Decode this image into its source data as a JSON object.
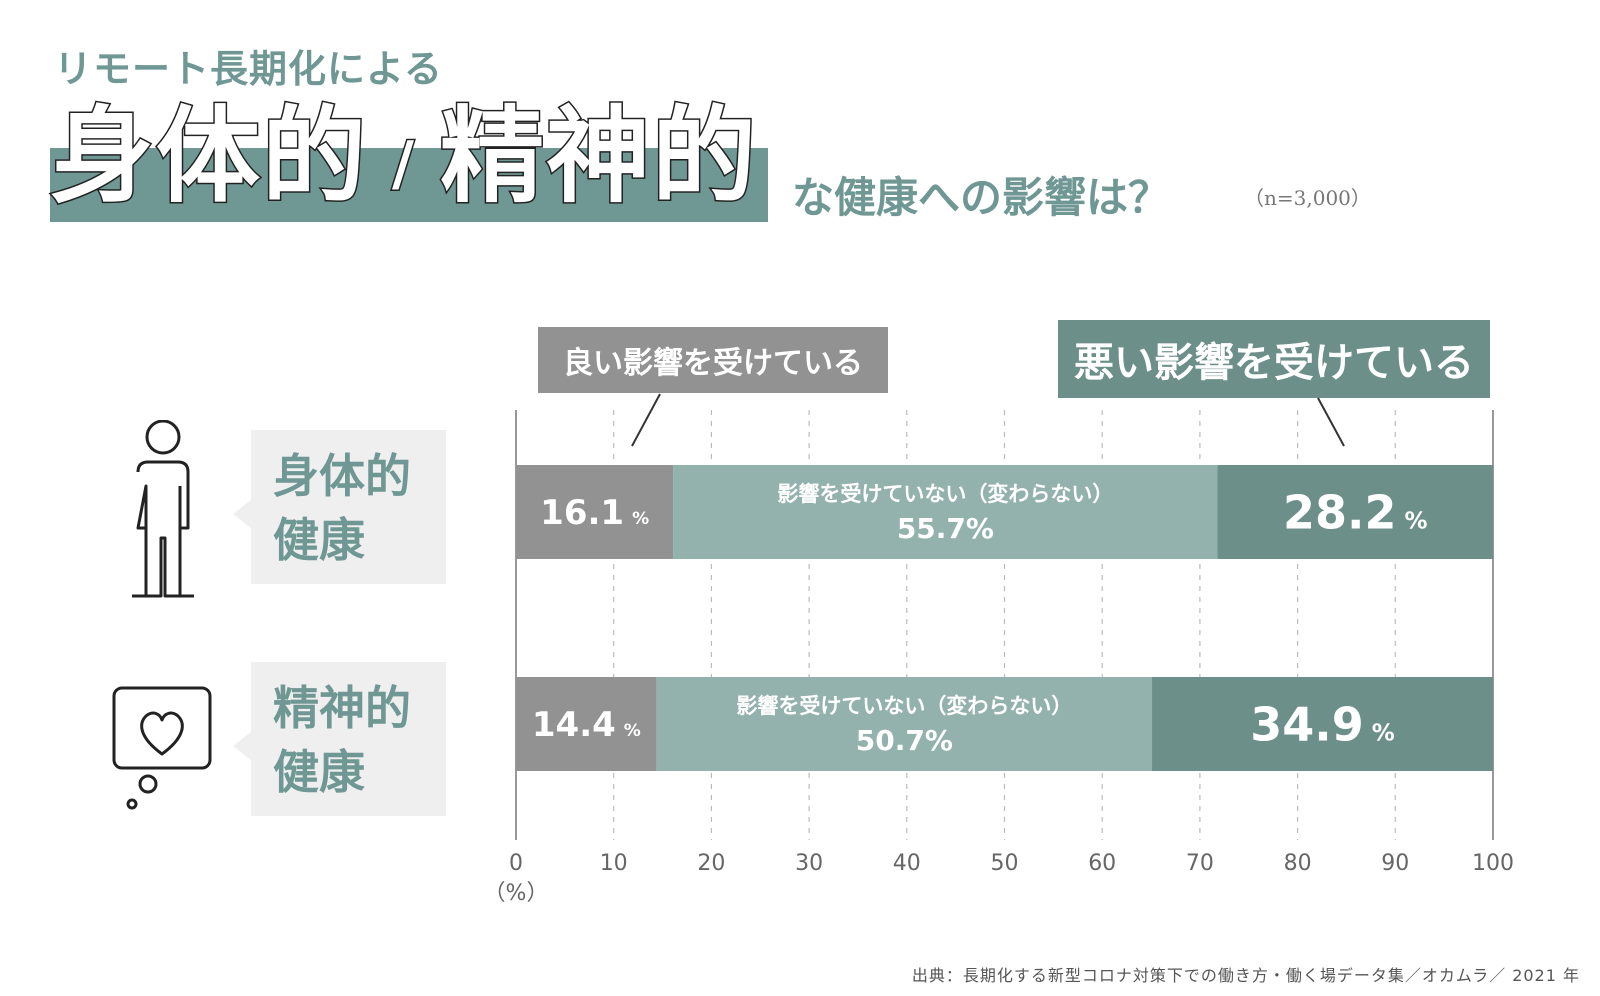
{
  "header": {
    "subtitle": "リモート長期化による",
    "title_part1": "身体的",
    "title_slash": "/",
    "title_part2": "精神的",
    "title_rest": "な健康への影響は？",
    "sample": "（n=3,000）"
  },
  "callouts": {
    "good": "良い影響を受けている",
    "bad": "悪い影響を受けている"
  },
  "categories": [
    {
      "line1": "身体的",
      "line2": "健康",
      "icon": "person-icon"
    },
    {
      "line1": "精神的",
      "line2": "健康",
      "icon": "heart-thought-icon"
    }
  ],
  "colors": {
    "good": "#929292",
    "neutral": "#93b2ae",
    "bad": "#6c8f8a",
    "accent": "#6f9793"
  },
  "source": "出典：長期化する新型コロナ対策下での働き方・働く場データ集／オカムラ／ 2021 年",
  "chart_data": {
    "type": "bar",
    "stacked": true,
    "orientation": "horizontal",
    "categories": [
      "身体的健康",
      "精神的健康"
    ],
    "series": [
      {
        "name": "良い影響を受けている",
        "values": [
          16.1,
          14.4
        ]
      },
      {
        "name": "影響を受けていない（変わらない）",
        "values": [
          55.7,
          50.7
        ]
      },
      {
        "name": "悪い影響を受けている",
        "values": [
          28.2,
          34.9
        ]
      }
    ],
    "neutral_label": "影響を受けていない（変わらない）",
    "xlim": [
      0,
      100
    ],
    "xticks": [
      0,
      10,
      20,
      30,
      40,
      50,
      60,
      70,
      80,
      90,
      100
    ],
    "xunit": "（%）",
    "grid": true
  }
}
